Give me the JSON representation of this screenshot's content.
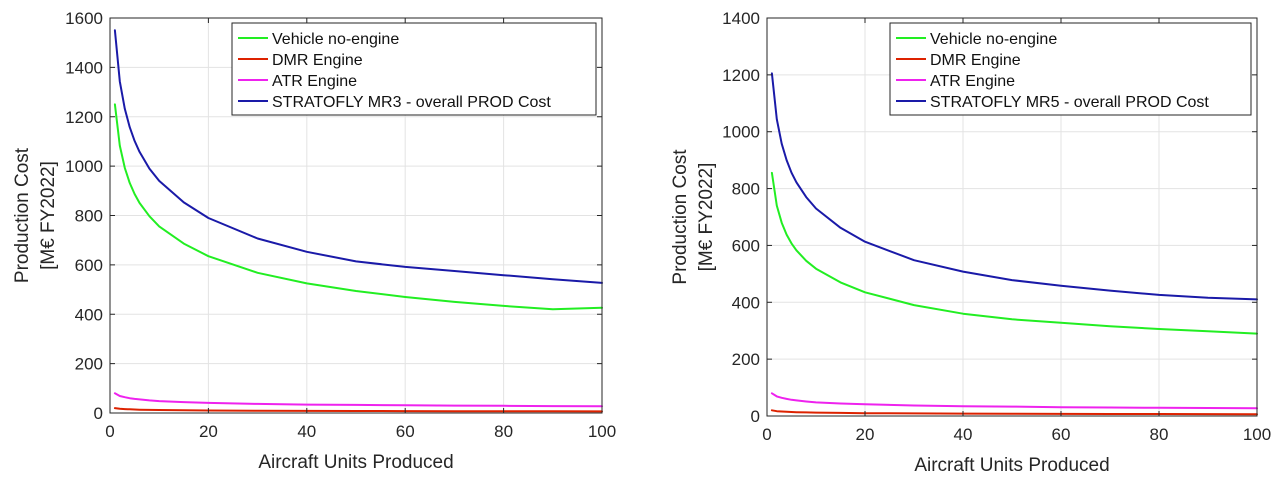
{
  "chart_data": [
    {
      "type": "line",
      "title": "",
      "xlabel": "Aircraft Units Produced",
      "ylabel_line1": "Production Cost",
      "ylabel_line2": "[M€ FY2022]",
      "xlim": [
        0,
        100
      ],
      "ylim": [
        0,
        1600
      ],
      "xticks": [
        0,
        20,
        40,
        60,
        80,
        100
      ],
      "yticks": [
        0,
        200,
        400,
        600,
        800,
        1000,
        1200,
        1400,
        1600
      ],
      "grid": true,
      "legend_position": "top-right",
      "x": [
        1,
        2,
        3,
        4,
        5,
        6,
        8,
        10,
        15,
        20,
        30,
        40,
        50,
        60,
        70,
        80,
        90,
        100
      ],
      "series": [
        {
          "name": "Vehicle no-engine",
          "color": "#22ee22",
          "values": [
            1250,
            1083,
            993,
            932,
            887,
            851,
            797,
            756,
            686,
            635,
            568,
            525,
            494,
            470,
            450,
            434,
            420,
            426
          ]
        },
        {
          "name": "DMR Engine",
          "color": "#dd2200",
          "values": [
            20,
            17,
            16,
            15,
            14,
            13.5,
            12.5,
            12,
            11,
            10,
            9,
            8.5,
            8,
            7.5,
            7.2,
            7,
            6.8,
            6.5
          ]
        },
        {
          "name": "ATR Engine",
          "color": "#ee22ee",
          "values": [
            80,
            69,
            64,
            60,
            57,
            55,
            51,
            48,
            44,
            41,
            37,
            34,
            33,
            31,
            30,
            29,
            28,
            27
          ]
        },
        {
          "name": "STRATOFLY MR3 - overall PROD Cost",
          "color": "#1a1aa8",
          "values": [
            1550,
            1343,
            1232,
            1158,
            1102,
            1058,
            990,
            940,
            853,
            790,
            707,
            653,
            614,
            592,
            575,
            558,
            542,
            527
          ]
        }
      ]
    },
    {
      "type": "line",
      "title": "",
      "xlabel": "Aircraft Units Produced",
      "ylabel_line1": "Production Cost",
      "ylabel_line2": "[M€ FY2022]",
      "xlim": [
        0,
        100
      ],
      "ylim": [
        0,
        1400
      ],
      "xticks": [
        0,
        20,
        40,
        60,
        80,
        100
      ],
      "yticks": [
        0,
        200,
        400,
        600,
        800,
        1000,
        1200,
        1400
      ],
      "grid": true,
      "legend_position": "top-right",
      "x": [
        1,
        2,
        3,
        4,
        5,
        6,
        8,
        10,
        15,
        20,
        30,
        40,
        50,
        60,
        70,
        80,
        90,
        100
      ],
      "series": [
        {
          "name": "Vehicle no-engine",
          "color": "#22ee22",
          "values": [
            855,
            740,
            680,
            638,
            607,
            583,
            546,
            518,
            470,
            435,
            390,
            360,
            340,
            328,
            316,
            306,
            298,
            290
          ]
        },
        {
          "name": "DMR Engine",
          "color": "#dd2200",
          "values": [
            20,
            17,
            16,
            15,
            14,
            13.5,
            12.5,
            12,
            11,
            10,
            9,
            8.5,
            8,
            7.5,
            7.2,
            7,
            6.8,
            6.5
          ]
        },
        {
          "name": "ATR Engine",
          "color": "#ee22ee",
          "values": [
            80,
            69,
            64,
            60,
            57,
            55,
            51,
            48,
            44,
            41,
            37,
            34,
            33,
            31,
            30,
            29,
            28,
            27
          ]
        },
        {
          "name": "STRATOFLY MR5 - overall PROD Cost",
          "color": "#1a1aa8",
          "values": [
            1205,
            1044,
            958,
            900,
            856,
            822,
            770,
            730,
            662,
            613,
            548,
            508,
            478,
            458,
            441,
            426,
            416,
            410
          ]
        }
      ]
    }
  ]
}
